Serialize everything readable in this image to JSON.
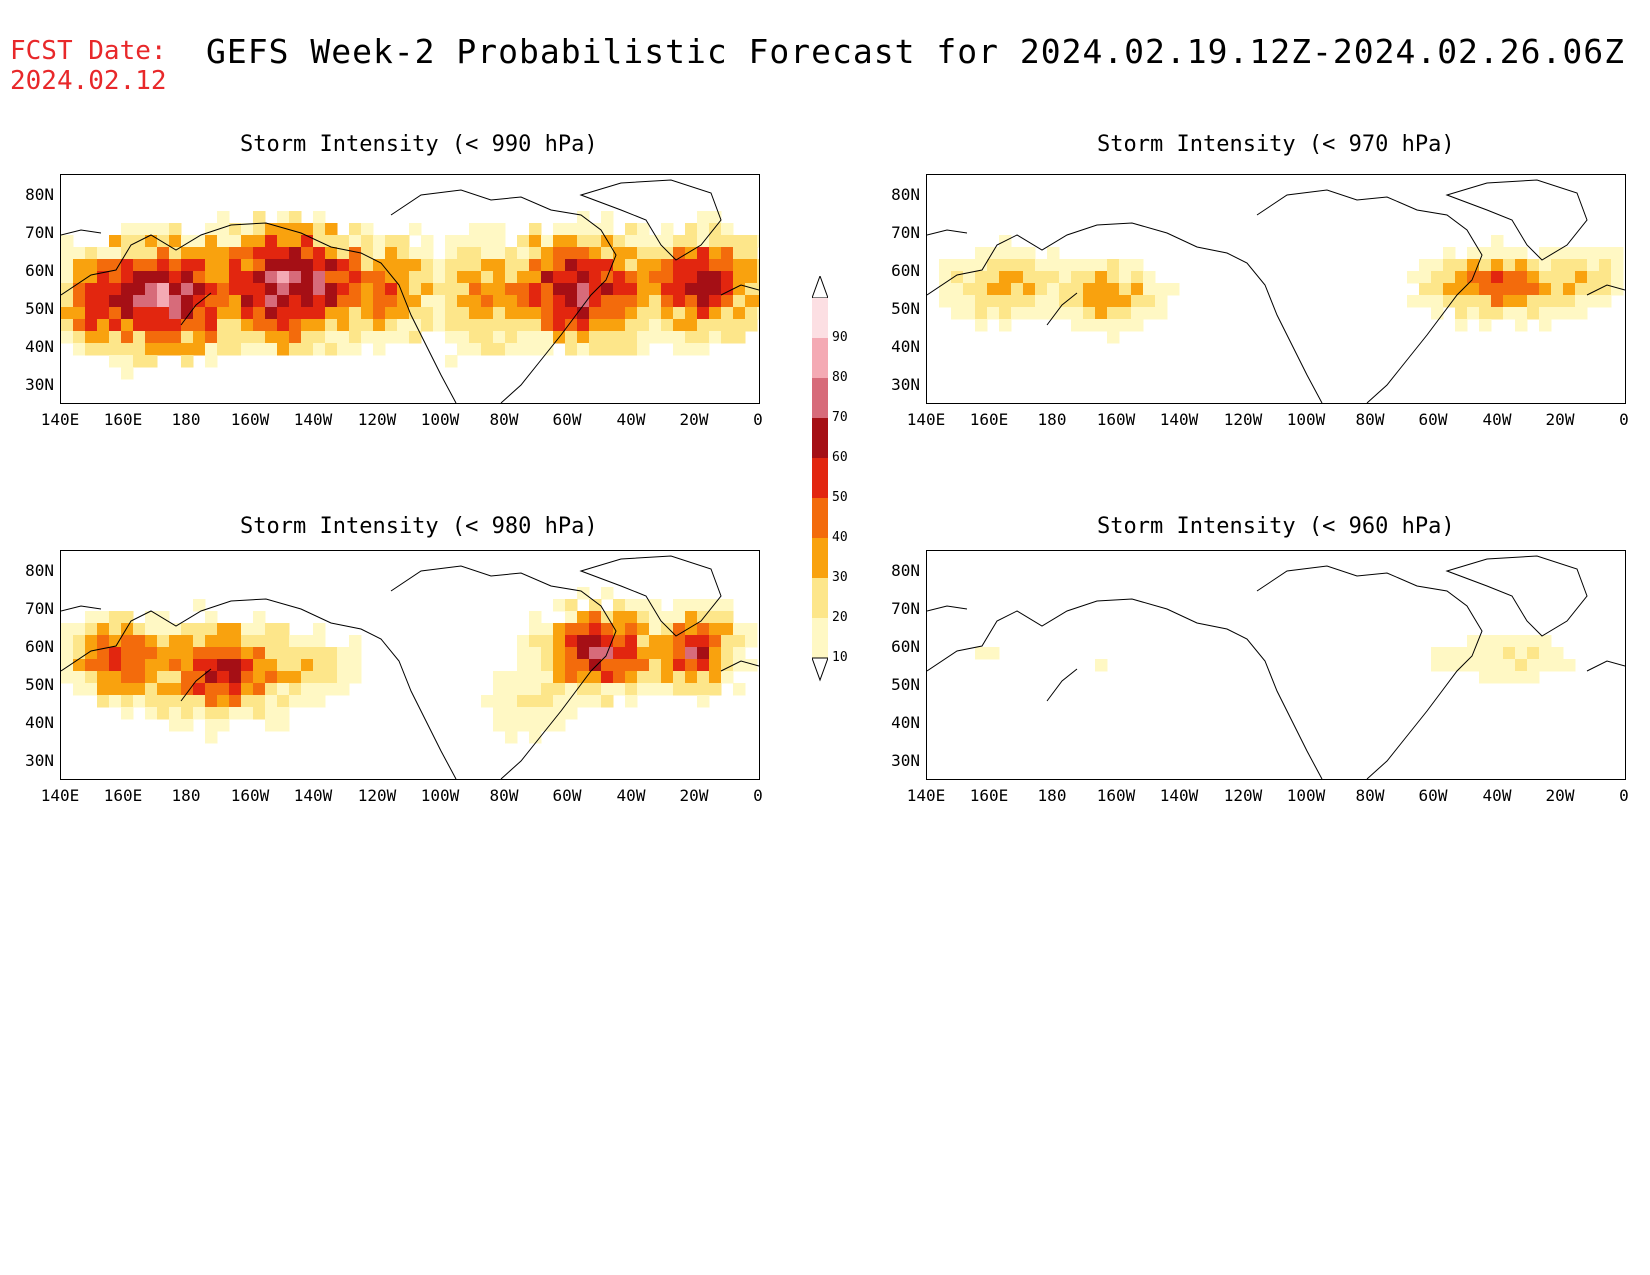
{
  "header": {
    "fcst_label": "FCST Date:",
    "fcst_date": "2024.02.12",
    "title": "GEFS Week-2 Probabilistic Forecast for 2024.02.19.12Z-2024.02.26.06Z"
  },
  "axes": {
    "lat_labels": [
      "80N",
      "70N",
      "60N",
      "50N",
      "40N",
      "30N"
    ],
    "lon_labels": [
      "140E",
      "160E",
      "180",
      "160W",
      "140W",
      "120W",
      "100W",
      "80W",
      "60W",
      "40W",
      "20W",
      "0"
    ]
  },
  "panels": [
    {
      "title": "Storm Intensity (< 990 hPa)",
      "threshold_hPa": 990,
      "coverage": "high"
    },
    {
      "title": "Storm Intensity (< 970 hPa)",
      "threshold_hPa": 970,
      "coverage": "moderate"
    },
    {
      "title": "Storm Intensity (< 980 hPa)",
      "threshold_hPa": 980,
      "coverage": "medium"
    },
    {
      "title": "Storm Intensity (< 960 hPa)",
      "threshold_hPa": 960,
      "coverage": "low"
    }
  ],
  "colorbar": {
    "levels": [
      "90",
      "80",
      "70",
      "60",
      "50",
      "40",
      "30",
      "20",
      "10"
    ],
    "colors": [
      "#fcdfe3",
      "#f4aab4",
      "#d76b7a",
      "#a50f15",
      "#e2260f",
      "#f36b0c",
      "#f9a20e",
      "#fde68a",
      "#fff8c4"
    ]
  }
}
